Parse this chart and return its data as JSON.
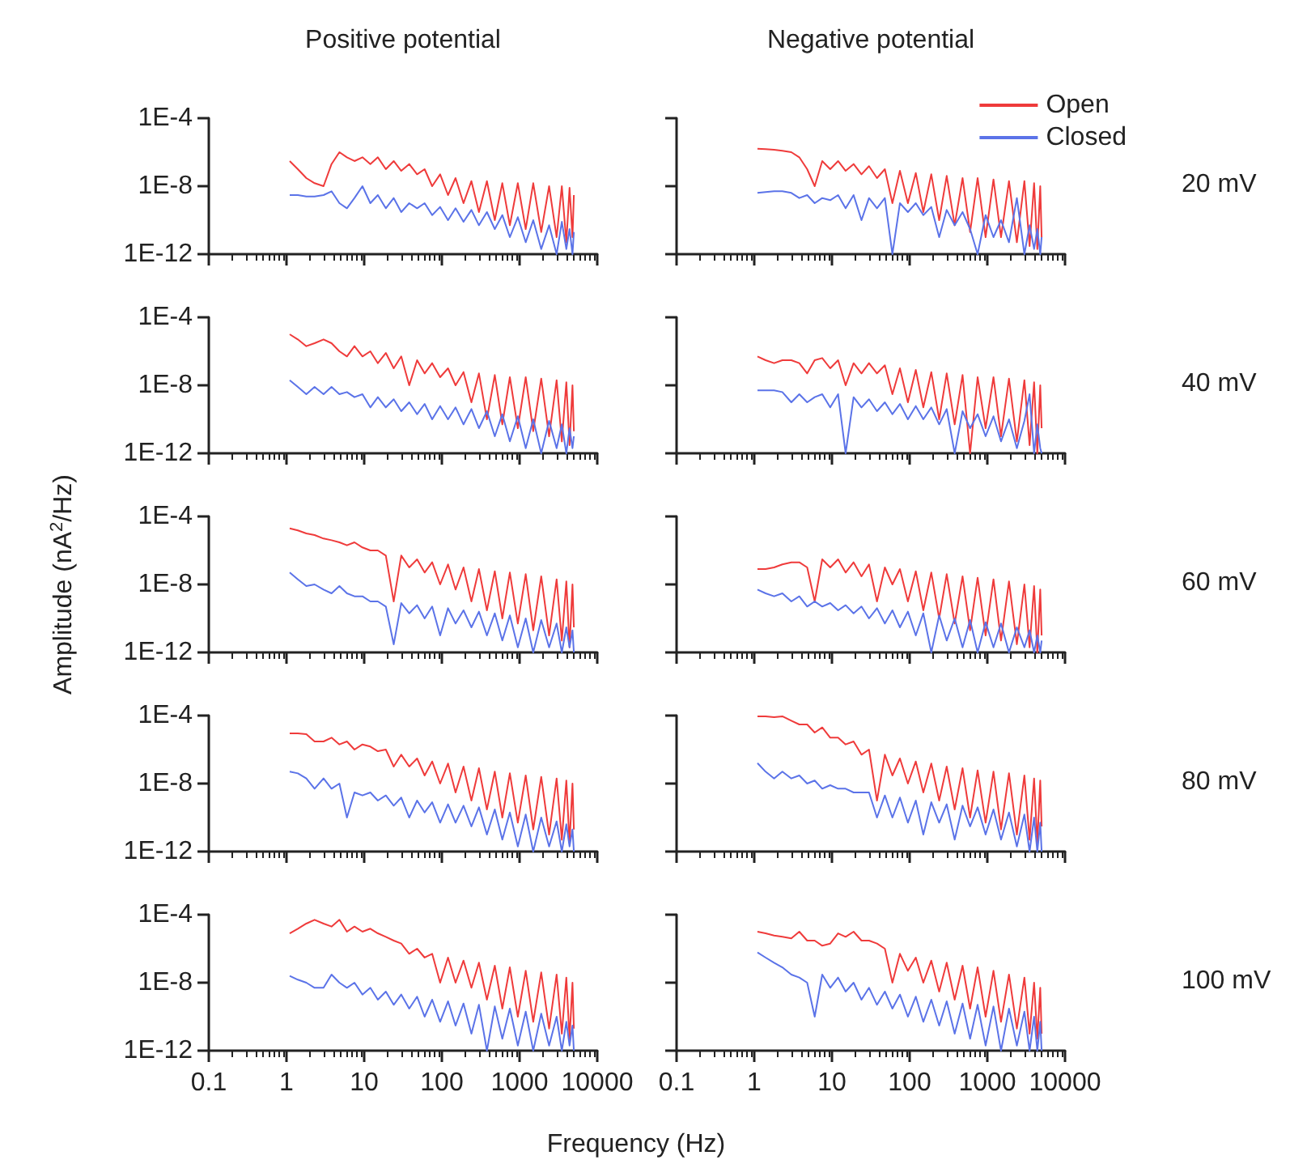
{
  "chart_data": [
    {
      "type": "line",
      "title": "Positive potential",
      "tick_labels": "y",
      "log": "xy",
      "xlim": [
        0.1,
        10000
      ],
      "ylim": [
        1e-12,
        0.0001
      ],
      "xticks": [
        0.1,
        1,
        10,
        100,
        1000,
        10000
      ],
      "yticks": [
        {
          "value": 1e-12,
          "label": "1E-12"
        },
        {
          "value": 1e-08,
          "label": "1E-8"
        },
        {
          "value": 0.0001,
          "label": "1E-4"
        }
      ],
      "x": [
        1.1,
        1.4,
        1.8,
        2.3,
        3,
        3.8,
        4.8,
        6,
        7.5,
        9.5,
        12,
        15,
        19,
        24,
        30,
        38,
        48,
        60,
        75,
        95,
        120,
        150,
        190,
        240,
        300,
        380,
        480,
        600,
        750,
        950,
        1200,
        1500,
        1900,
        2400,
        3000,
        3500,
        4000,
        4400,
        4800,
        5000
      ],
      "series": [
        {
          "color": "#ef3b3b",
          "values": [
            3e-07,
            1e-07,
            3e-08,
            1.5e-08,
            1e-08,
            2e-07,
            1e-06,
            5e-07,
            3e-07,
            5e-07,
            2e-07,
            5e-07,
            1e-07,
            3e-07,
            8e-08,
            2e-07,
            5e-08,
            1e-07,
            1e-08,
            5e-08,
            3e-09,
            3e-08,
            1e-09,
            2e-08,
            3e-10,
            2e-08,
            1e-10,
            1.5e-08,
            5e-11,
            1.5e-08,
            3e-11,
            1.5e-08,
            2e-11,
            1e-08,
            1e-11,
            1e-08,
            5e-12,
            8e-09,
            1e-11,
            3e-09
          ]
        },
        {
          "color": "#5b73e8",
          "values": [
            3e-09,
            3e-09,
            2.5e-09,
            2.5e-09,
            3e-09,
            5e-09,
            1e-09,
            5e-10,
            2e-09,
            1e-08,
            1e-09,
            3e-09,
            5e-10,
            2e-09,
            3e-10,
            1e-09,
            5e-10,
            1e-09,
            2e-10,
            6e-10,
            1e-10,
            5e-10,
            8e-11,
            4e-10,
            5e-11,
            3e-10,
            3e-11,
            2e-10,
            1e-11,
            1.5e-10,
            5e-12,
            1e-10,
            2e-12,
            5e-11,
            1e-12,
            8e-11,
            2e-12,
            3e-11,
            1e-12,
            2e-11
          ]
        }
      ]
    },
    {
      "type": "line",
      "title": "Negative potential",
      "tick_labels": false,
      "log": "xy",
      "legend": "top right",
      "annotations": [
        "20 mV"
      ],
      "xlim": [
        0.1,
        10000
      ],
      "ylim": [
        1e-12,
        0.0001
      ],
      "xticks": [
        0.1,
        1,
        10,
        100,
        1000,
        10000
      ],
      "yticks": [
        {
          "value": 1e-12,
          "label": null
        },
        {
          "value": 1e-08,
          "label": null
        },
        {
          "value": 0.0001,
          "label": null
        }
      ],
      "x": [
        1.1,
        1.4,
        1.8,
        2.3,
        3,
        3.8,
        4.8,
        6,
        7.5,
        9.5,
        12,
        15,
        19,
        24,
        30,
        38,
        48,
        60,
        75,
        95,
        120,
        150,
        190,
        240,
        300,
        380,
        480,
        600,
        750,
        950,
        1200,
        1500,
        1900,
        2400,
        3000,
        3500,
        4000,
        4400,
        4800,
        5000
      ],
      "series": [
        {
          "name": "Open",
          "color": "#ef3b3b",
          "values": [
            1.6e-06,
            1.5e-06,
            1.4e-06,
            1.2e-06,
            1e-06,
            5e-07,
            1e-07,
            1e-08,
            3e-07,
            1e-07,
            3e-07,
            8e-08,
            2e-07,
            5e-08,
            1.5e-07,
            3e-08,
            1e-07,
            1e-09,
            8e-08,
            1e-09,
            6e-08,
            3e-10,
            5e-08,
            1e-10,
            4e-08,
            5e-11,
            3e-08,
            2e-11,
            3e-08,
            1e-11,
            2.5e-08,
            1e-11,
            2e-08,
            5e-12,
            2e-08,
            3e-12,
            1.5e-08,
            2e-12,
            1e-08,
            1e-11
          ]
        },
        {
          "name": "Closed",
          "color": "#5b73e8",
          "values": [
            4e-09,
            4.5e-09,
            5e-09,
            5e-09,
            4e-09,
            2e-09,
            3e-09,
            1e-09,
            2e-09,
            1.5e-09,
            3e-09,
            5e-10,
            3e-09,
            1e-10,
            2e-09,
            5e-10,
            2e-09,
            1e-12,
            1e-09,
            3e-10,
            1e-09,
            2e-10,
            6e-10,
            1e-11,
            4e-10,
            5e-11,
            3e-10,
            3e-11,
            1e-12,
            2e-10,
            1e-11,
            1e-10,
            5e-12,
            2e-09,
            1e-12,
            5e-11,
            2e-12,
            3e-11,
            1e-12,
            1e-11
          ]
        }
      ]
    },
    {
      "type": "line",
      "tick_labels": "y",
      "log": "xy",
      "xlim": [
        0.1,
        10000
      ],
      "ylim": [
        1e-12,
        0.0001
      ],
      "xticks": [
        0.1,
        1,
        10,
        100,
        1000,
        10000
      ],
      "yticks": [
        {
          "value": 1e-12,
          "label": "1E-12"
        },
        {
          "value": 1e-08,
          "label": "1E-8"
        },
        {
          "value": 0.0001,
          "label": "1E-4"
        }
      ],
      "x": [
        1.1,
        1.4,
        1.8,
        2.3,
        3,
        3.8,
        4.8,
        6,
        7.5,
        9.5,
        12,
        15,
        19,
        24,
        30,
        38,
        48,
        60,
        75,
        95,
        120,
        150,
        190,
        240,
        300,
        380,
        480,
        600,
        750,
        950,
        1200,
        1500,
        1900,
        2400,
        3000,
        3500,
        4000,
        4400,
        4800,
        5000
      ],
      "series": [
        {
          "color": "#ef3b3b",
          "values": [
            1e-05,
            5e-06,
            2e-06,
            3e-06,
            5e-06,
            3e-06,
            1e-06,
            5e-07,
            2e-06,
            5e-07,
            1e-06,
            2e-07,
            8e-07,
            1e-07,
            5e-07,
            1e-08,
            3e-07,
            5e-08,
            2e-07,
            3e-08,
            1e-07,
            1e-08,
            6e-08,
            1e-09,
            5e-08,
            1e-10,
            4e-08,
            5e-11,
            3e-08,
            3e-11,
            3e-08,
            2e-11,
            2.5e-08,
            1e-11,
            2e-08,
            5e-12,
            1.5e-08,
            3e-12,
            1e-08,
            2e-11
          ]
        },
        {
          "color": "#5b73e8",
          "values": [
            2e-08,
            8e-09,
            3e-09,
            8e-09,
            3e-09,
            8e-09,
            3e-09,
            4e-09,
            2e-09,
            3e-09,
            5e-10,
            2e-09,
            5e-10,
            1.5e-09,
            3e-10,
            1e-09,
            2e-10,
            8e-10,
            1e-10,
            6e-10,
            1e-10,
            5e-10,
            5e-11,
            4e-10,
            3e-11,
            3e-10,
            1e-11,
            2e-10,
            5e-12,
            1.5e-10,
            2e-12,
            1e-10,
            1e-12,
            8e-11,
            2e-12,
            5e-11,
            1e-12,
            3e-11,
            2e-12,
            1e-11
          ]
        }
      ]
    },
    {
      "type": "line",
      "tick_labels": false,
      "log": "xy",
      "annotations": [
        "40 mV"
      ],
      "xlim": [
        0.1,
        10000
      ],
      "ylim": [
        1e-12,
        0.0001
      ],
      "xticks": [
        0.1,
        1,
        10,
        100,
        1000,
        10000
      ],
      "yticks": [
        {
          "value": 1e-12,
          "label": null
        },
        {
          "value": 1e-08,
          "label": null
        },
        {
          "value": 0.0001,
          "label": null
        }
      ],
      "x": [
        1.1,
        1.4,
        1.8,
        2.3,
        3,
        3.8,
        4.8,
        6,
        7.5,
        9.5,
        12,
        15,
        19,
        24,
        30,
        38,
        48,
        60,
        75,
        95,
        120,
        150,
        190,
        240,
        300,
        380,
        480,
        600,
        750,
        950,
        1200,
        1500,
        1900,
        2400,
        3000,
        3500,
        4000,
        4400,
        4800,
        5000
      ],
      "series": [
        {
          "color": "#ef3b3b",
          "values": [
            5e-07,
            3e-07,
            2e-07,
            3e-07,
            3e-07,
            2e-07,
            5e-08,
            3e-07,
            4e-07,
            1e-07,
            3e-07,
            1e-08,
            2e-07,
            5e-08,
            2e-07,
            5e-08,
            1.5e-07,
            3e-09,
            1e-07,
            1e-09,
            8e-08,
            5e-10,
            6e-08,
            1e-10,
            5e-08,
            5e-11,
            4e-08,
            1e-12,
            3e-08,
            3e-11,
            3e-08,
            1e-11,
            2.5e-08,
            5e-12,
            2e-08,
            3e-12,
            1.5e-08,
            1e-12,
            1e-08,
            3e-11
          ]
        },
        {
          "color": "#5b73e8",
          "values": [
            5e-09,
            5e-09,
            5e-09,
            4e-09,
            1e-09,
            3e-09,
            1e-09,
            2e-09,
            3e-09,
            5e-10,
            3e-09,
            1e-12,
            2e-09,
            5e-10,
            1.5e-09,
            3e-10,
            1e-09,
            2e-10,
            8e-10,
            1e-10,
            6e-10,
            1e-10,
            5e-10,
            5e-11,
            4e-10,
            1e-12,
            3e-10,
            3e-11,
            2e-10,
            1e-11,
            1.5e-10,
            5e-12,
            1e-10,
            2e-12,
            8e-11,
            3e-09,
            1e-12,
            5e-11,
            2e-12,
            1e-12
          ]
        }
      ]
    },
    {
      "type": "line",
      "tick_labels": "y",
      "log": "xy",
      "ylabel": "Amplitude (nA$^{2}$/Hz)",
      "xlim": [
        0.1,
        10000
      ],
      "ylim": [
        1e-12,
        0.0001
      ],
      "xticks": [
        0.1,
        1,
        10,
        100,
        1000,
        10000
      ],
      "yticks": [
        {
          "value": 1e-12,
          "label": "1E-12"
        },
        {
          "value": 1e-08,
          "label": "1E-8"
        },
        {
          "value": 0.0001,
          "label": "1E-4"
        }
      ],
      "x": [
        1.1,
        1.4,
        1.8,
        2.3,
        3,
        3.8,
        4.8,
        6,
        7.5,
        9.5,
        12,
        15,
        19,
        24,
        30,
        38,
        48,
        60,
        75,
        95,
        120,
        150,
        190,
        240,
        300,
        380,
        480,
        600,
        750,
        950,
        1200,
        1500,
        1900,
        2400,
        3000,
        3500,
        4000,
        4400,
        4800,
        5000
      ],
      "series": [
        {
          "color": "#ef3b3b",
          "values": [
            2e-05,
            1.5e-05,
            1e-05,
            8e-06,
            5e-06,
            4e-06,
            3e-06,
            2e-06,
            3e-06,
            1.5e-06,
            1e-06,
            1e-06,
            5e-07,
            1e-09,
            5e-07,
            1e-07,
            3e-07,
            5e-08,
            2e-07,
            1e-08,
            1.5e-07,
            5e-09,
            1e-07,
            1e-09,
            8e-08,
            3e-10,
            6e-08,
            1e-10,
            5e-08,
            5e-11,
            4e-08,
            2e-11,
            3e-08,
            1e-11,
            2e-08,
            5e-12,
            1.5e-08,
            2e-12,
            1e-08,
            3e-11
          ]
        },
        {
          "color": "#5b73e8",
          "values": [
            5e-08,
            2e-08,
            8e-09,
            1e-08,
            5e-09,
            3e-09,
            8e-09,
            3e-09,
            2e-09,
            2e-09,
            1e-09,
            1e-09,
            5e-10,
            3e-12,
            8e-10,
            2e-10,
            6e-10,
            1e-10,
            5e-10,
            1e-11,
            4e-10,
            5e-11,
            3e-10,
            3e-11,
            2.5e-10,
            1e-11,
            2e-10,
            5e-12,
            1.5e-10,
            2e-12,
            1e-10,
            1e-12,
            8e-11,
            2e-12,
            5e-11,
            1e-12,
            3e-11,
            2e-12,
            2e-11,
            1e-12
          ]
        }
      ]
    },
    {
      "type": "line",
      "tick_labels": false,
      "log": "xy",
      "annotations": [
        "60 mV"
      ],
      "xlim": [
        0.1,
        10000
      ],
      "ylim": [
        1e-12,
        0.0001
      ],
      "xticks": [
        0.1,
        1,
        10,
        100,
        1000,
        10000
      ],
      "yticks": [
        {
          "value": 1e-12,
          "label": null
        },
        {
          "value": 1e-08,
          "label": null
        },
        {
          "value": 0.0001,
          "label": null
        }
      ],
      "x": [
        1.1,
        1.4,
        1.8,
        2.3,
        3,
        3.8,
        4.8,
        6,
        7.5,
        9.5,
        12,
        15,
        19,
        24,
        30,
        38,
        48,
        60,
        75,
        95,
        120,
        150,
        190,
        240,
        300,
        380,
        480,
        600,
        750,
        950,
        1200,
        1500,
        1900,
        2400,
        3000,
        3500,
        4000,
        4400,
        4800,
        5000
      ],
      "series": [
        {
          "color": "#ef3b3b",
          "values": [
            8e-08,
            8e-08,
            1e-07,
            1.5e-07,
            2e-07,
            2e-07,
            1e-07,
            1e-09,
            3e-07,
            1e-07,
            3e-07,
            5e-08,
            2e-07,
            3e-08,
            1.5e-07,
            1e-09,
            1e-07,
            1e-08,
            8e-08,
            1e-09,
            6e-08,
            3e-10,
            5e-08,
            1e-10,
            4e-08,
            5e-11,
            3e-08,
            2e-11,
            2.5e-08,
            1e-11,
            2e-08,
            5e-12,
            1.5e-08,
            3e-12,
            1e-08,
            2e-12,
            8e-09,
            1e-12,
            5e-09,
            1e-11
          ]
        },
        {
          "color": "#5b73e8",
          "values": [
            5e-09,
            3e-09,
            2e-09,
            3e-09,
            1e-09,
            2e-09,
            5e-10,
            1e-09,
            5e-10,
            8e-10,
            3e-10,
            6e-10,
            2e-10,
            5e-10,
            1e-10,
            4e-10,
            5e-11,
            3e-10,
            3e-11,
            2.5e-10,
            1e-11,
            2e-10,
            1e-12,
            1.5e-10,
            5e-12,
            1e-10,
            2e-12,
            8e-11,
            1e-12,
            6e-11,
            2e-12,
            5e-11,
            1e-12,
            3e-11,
            2e-12,
            2e-11,
            1e-12,
            1e-11,
            1e-12,
            5e-12
          ]
        }
      ]
    },
    {
      "type": "line",
      "tick_labels": "y",
      "log": "xy",
      "xlim": [
        0.1,
        10000
      ],
      "ylim": [
        1e-12,
        0.0001
      ],
      "xticks": [
        0.1,
        1,
        10,
        100,
        1000,
        10000
      ],
      "yticks": [
        {
          "value": 1e-12,
          "label": "1E-12"
        },
        {
          "value": 1e-08,
          "label": "1E-8"
        },
        {
          "value": 0.0001,
          "label": "1E-4"
        }
      ],
      "x": [
        1.1,
        1.4,
        1.8,
        2.3,
        3,
        3.8,
        4.8,
        6,
        7.5,
        9.5,
        12,
        15,
        19,
        24,
        30,
        38,
        48,
        60,
        75,
        95,
        120,
        150,
        190,
        240,
        300,
        380,
        480,
        600,
        750,
        950,
        1200,
        1500,
        1900,
        2400,
        3000,
        3500,
        4000,
        4400,
        4800,
        5000
      ],
      "series": [
        {
          "color": "#ef3b3b",
          "values": [
            9e-06,
            9e-06,
            8e-06,
            3e-06,
            3e-06,
            5e-06,
            2e-06,
            3e-06,
            1e-06,
            2e-06,
            1.5e-06,
            8e-07,
            1e-06,
            1e-07,
            5e-07,
            1e-07,
            3e-07,
            3e-08,
            2e-07,
            1e-08,
            1.5e-07,
            3e-09,
            1e-07,
            1e-09,
            8e-08,
            3e-10,
            5e-08,
            1e-10,
            4e-08,
            5e-11,
            3e-08,
            2e-11,
            2.5e-08,
            1e-11,
            2e-08,
            5e-12,
            1.5e-08,
            3e-12,
            1e-08,
            2e-11
          ]
        },
        {
          "color": "#5b73e8",
          "values": [
            5e-08,
            4e-08,
            2e-08,
            5e-09,
            2e-08,
            5e-09,
            1e-08,
            1e-10,
            3e-09,
            2e-09,
            3e-09,
            1e-09,
            2e-09,
            5e-10,
            1.5e-09,
            1e-10,
            1e-09,
            2e-10,
            8e-10,
            5e-11,
            6e-10,
            5e-11,
            5e-10,
            3e-11,
            4e-10,
            1e-11,
            3e-10,
            5e-12,
            2e-10,
            2e-12,
            1.5e-10,
            1e-12,
            1e-10,
            2e-12,
            6e-11,
            1e-12,
            4e-11,
            2e-12,
            2e-11,
            1e-12
          ]
        }
      ]
    },
    {
      "type": "line",
      "tick_labels": false,
      "log": "xy",
      "annotations": [
        "80 mV"
      ],
      "xlim": [
        0.1,
        10000
      ],
      "ylim": [
        1e-12,
        0.0001
      ],
      "xticks": [
        0.1,
        1,
        10,
        100,
        1000,
        10000
      ],
      "yticks": [
        {
          "value": 1e-12,
          "label": null
        },
        {
          "value": 1e-08,
          "label": null
        },
        {
          "value": 0.0001,
          "label": null
        }
      ],
      "x": [
        1.1,
        1.4,
        1.8,
        2.3,
        3,
        3.8,
        4.8,
        6,
        7.5,
        9.5,
        12,
        15,
        19,
        24,
        30,
        38,
        48,
        60,
        75,
        95,
        120,
        150,
        190,
        240,
        300,
        380,
        480,
        600,
        750,
        950,
        1200,
        1500,
        1900,
        2400,
        3000,
        3500,
        4000,
        4400,
        4800,
        5000
      ],
      "series": [
        {
          "color": "#ef3b3b",
          "values": [
            9e-05,
            9e-05,
            8e-05,
            9e-05,
            5e-05,
            3e-05,
            3e-05,
            1e-05,
            2e-05,
            5e-06,
            5e-06,
            2e-06,
            3e-06,
            5e-07,
            1e-06,
            1e-09,
            5e-07,
            3e-08,
            3e-07,
            1e-08,
            2e-07,
            3e-09,
            1.5e-07,
            1e-09,
            1e-07,
            3e-10,
            8e-08,
            1e-10,
            6e-08,
            5e-11,
            5e-08,
            2e-11,
            4e-08,
            1e-11,
            3e-08,
            5e-12,
            2e-08,
            3e-12,
            1.5e-08,
            3e-11
          ]
        },
        {
          "color": "#5b73e8",
          "values": [
            1.6e-07,
            5e-08,
            2e-08,
            5e-08,
            2e-08,
            3e-08,
            1e-08,
            1.5e-08,
            5e-09,
            8e-09,
            5e-09,
            5e-09,
            3e-09,
            3e-09,
            3e-09,
            1e-10,
            2e-09,
            1e-10,
            1.5e-09,
            5e-11,
            1e-09,
            1e-11,
            8e-10,
            5e-11,
            6e-10,
            5e-12,
            5e-10,
            3e-11,
            4e-10,
            1e-11,
            3e-10,
            5e-12,
            2e-10,
            2e-12,
            1.5e-10,
            1e-12,
            1e-10,
            1e-12,
            5e-11,
            1e-12
          ]
        }
      ]
    },
    {
      "type": "line",
      "log": "xy",
      "xlabel": "Frequency (Hz)",
      "xlim": [
        0.1,
        10000
      ],
      "ylim": [
        1e-12,
        0.0001
      ],
      "xticks": [
        0.1,
        1,
        10,
        100,
        1000,
        10000
      ],
      "yticks": [
        {
          "value": 1e-12,
          "label": "1E-12"
        },
        {
          "value": 1e-08,
          "label": "1E-8"
        },
        {
          "value": 0.0001,
          "label": "1E-4"
        }
      ],
      "x": [
        1.1,
        1.4,
        1.8,
        2.3,
        3,
        3.8,
        4.8,
        6,
        7.5,
        9.5,
        12,
        15,
        19,
        24,
        30,
        38,
        48,
        60,
        75,
        95,
        120,
        150,
        190,
        240,
        300,
        380,
        480,
        600,
        750,
        950,
        1200,
        1500,
        1900,
        2400,
        3000,
        3500,
        4000,
        4400,
        4800,
        5000
      ],
      "series": [
        {
          "color": "#ef3b3b",
          "values": [
            8e-06,
            1.5e-05,
            3e-05,
            5e-05,
            3e-05,
            2e-05,
            5e-05,
            1e-05,
            2e-05,
            1e-05,
            1.5e-05,
            8e-06,
            5e-06,
            3e-06,
            2e-06,
            5e-07,
            1e-06,
            3e-07,
            5e-07,
            1e-08,
            3e-07,
            1e-08,
            2e-07,
            5e-09,
            1.5e-07,
            1e-09,
            1e-07,
            3e-10,
            8e-08,
            1e-10,
            5e-08,
            5e-11,
            4e-08,
            2e-11,
            3e-08,
            1e-11,
            2e-08,
            5e-12,
            1e-08,
            2e-11
          ]
        },
        {
          "color": "#5b73e8",
          "values": [
            2.5e-08,
            1.5e-08,
            1e-08,
            5e-09,
            5e-09,
            3e-08,
            1e-08,
            5e-09,
            1e-08,
            2e-09,
            5e-09,
            1e-09,
            3e-09,
            5e-10,
            2e-09,
            3e-10,
            1.5e-09,
            1e-10,
            1e-09,
            5e-11,
            8e-10,
            3e-11,
            6e-10,
            1e-11,
            5e-10,
            1e-12,
            4e-10,
            5e-12,
            3e-10,
            2e-12,
            2e-10,
            1e-12,
            1.5e-10,
            2e-12,
            1e-10,
            1e-12,
            5e-11,
            2e-12,
            3e-11,
            1e-12
          ]
        }
      ]
    },
    {
      "type": "line",
      "tick_labels": "x",
      "log": "xy",
      "annotations": [
        "100 mV"
      ],
      "xlim": [
        0.1,
        10000
      ],
      "ylim": [
        1e-12,
        0.0001
      ],
      "xticks": [
        0.1,
        1,
        10,
        100,
        1000,
        10000
      ],
      "yticks": [
        {
          "value": 1e-12,
          "label": null
        },
        {
          "value": 1e-08,
          "label": null
        },
        {
          "value": 0.0001,
          "label": null
        }
      ],
      "x": [
        1.1,
        1.4,
        1.8,
        2.3,
        3,
        3.8,
        4.8,
        6,
        7.5,
        9.5,
        12,
        15,
        19,
        24,
        30,
        38,
        48,
        60,
        75,
        95,
        120,
        150,
        190,
        240,
        300,
        380,
        480,
        600,
        750,
        950,
        1200,
        1500,
        1900,
        2400,
        3000,
        3500,
        4000,
        4400,
        4800,
        5000
      ],
      "series": [
        {
          "color": "#ef3b3b",
          "values": [
            1e-05,
            8e-06,
            6e-06,
            5e-06,
            4e-06,
            1e-05,
            3e-06,
            3e-06,
            1.5e-06,
            2e-06,
            8e-06,
            5e-06,
            1e-05,
            3e-06,
            3e-06,
            2e-06,
            1e-06,
            1e-08,
            5e-07,
            5e-08,
            3e-07,
            1e-08,
            2e-07,
            3e-09,
            1.5e-07,
            1e-09,
            1e-07,
            3e-10,
            8e-08,
            1e-10,
            5e-08,
            5e-11,
            3e-08,
            2e-11,
            2e-08,
            1e-11,
            1e-08,
            5e-12,
            5e-09,
            1e-11
          ]
        },
        {
          "color": "#5b73e8",
          "values": [
            6e-07,
            3e-07,
            1.5e-07,
            8e-08,
            3e-08,
            2e-08,
            1e-08,
            1e-10,
            3e-08,
            5e-09,
            2e-08,
            3e-09,
            1e-08,
            1e-09,
            5e-09,
            5e-10,
            3e-09,
            3e-10,
            2e-09,
            1e-10,
            1.5e-09,
            5e-11,
            1e-09,
            3e-11,
            8e-10,
            1e-11,
            6e-10,
            5e-12,
            5e-10,
            2e-12,
            4e-10,
            1e-12,
            3e-10,
            2e-12,
            2e-10,
            1e-12,
            1e-10,
            1e-12,
            5e-11,
            1e-12
          ]
        }
      ]
    }
  ]
}
